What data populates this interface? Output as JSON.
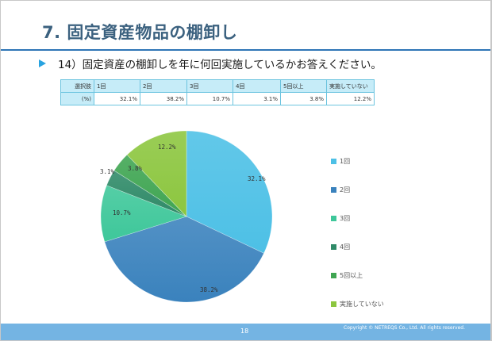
{
  "slide": {
    "title": "7. 固定資産物品の棚卸し",
    "question": "14）固定資産の棚卸しを年に何回実施しているかお答えください。",
    "page_number": "18",
    "copyright": "Copyright © NETREQS Co., Ltd. All rights reserved.",
    "colors": {
      "title": "#3b617f",
      "rule": "#2e75b6",
      "footer": "#74b4e3",
      "bullet": "#29a3e0"
    }
  },
  "table": {
    "header_label": "選択肢",
    "value_label": "(%)",
    "columns": [
      "1回",
      "2回",
      "3回",
      "4回",
      "5回以上",
      "実施していない"
    ],
    "values": [
      "32.1%",
      "38.2%",
      "10.7%",
      "3.1%",
      "3.8%",
      "12.2%"
    ]
  },
  "chart_data": {
    "type": "pie",
    "title": "",
    "categories": [
      "1回",
      "2回",
      "3回",
      "4回",
      "5回以上",
      "実施していない"
    ],
    "values": [
      32.1,
      38.2,
      10.7,
      3.1,
      3.8,
      12.2
    ],
    "labels": [
      "32.1%",
      "38.2%",
      "10.7%",
      "3.1%",
      "3.8%",
      "12.2%"
    ],
    "colors": [
      "#4dc0e6",
      "#3a82bd",
      "#3ec79a",
      "#2f8a68",
      "#3fa552",
      "#8cc63f"
    ],
    "start_angle": "12 o'clock",
    "direction": "clockwise",
    "legend_position": "right",
    "center": [
      234,
      272
    ],
    "radius": 108
  }
}
